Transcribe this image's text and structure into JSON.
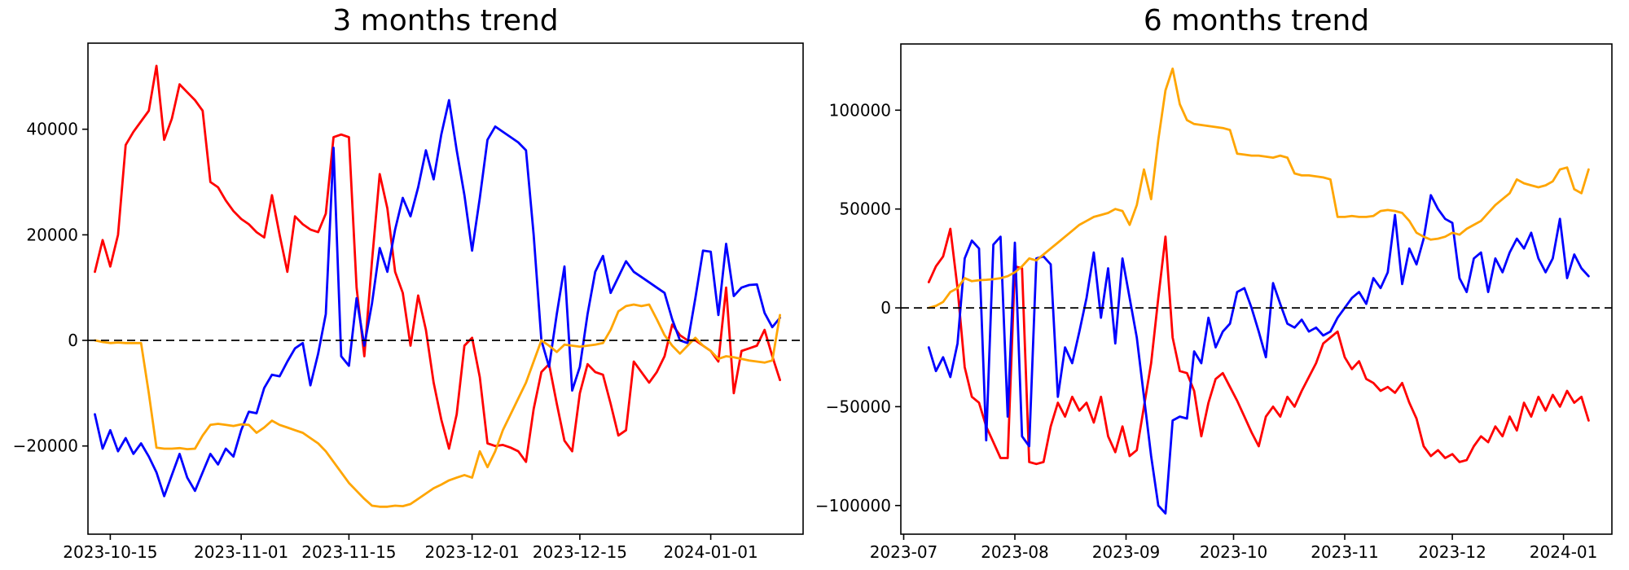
{
  "page": {
    "background": "#ffffff"
  },
  "chart_data": [
    {
      "type": "line",
      "title": "3 months trend",
      "xlabel": "",
      "ylabel": "",
      "grid": false,
      "legend": false,
      "zero_line_style": "black dashed",
      "start_date": "2023-10-13",
      "step_days": 1,
      "xlim_days": [
        -0.9,
        92.0
      ],
      "ylim": [
        -36700,
        56300
      ],
      "yticks": [
        {
          "label": "40000",
          "value": 40000
        },
        {
          "label": "20000",
          "value": 20000
        },
        {
          "label": "0",
          "value": 0
        },
        {
          "label": "−20000",
          "value": -20000
        }
      ],
      "xticks": [
        {
          "label": "2023-10-15",
          "day": 2
        },
        {
          "label": "2023-11-01",
          "day": 19
        },
        {
          "label": "2023-11-15",
          "day": 33
        },
        {
          "label": "2023-12-01",
          "day": 49
        },
        {
          "label": "2023-12-15",
          "day": 63
        },
        {
          "label": "2024-01-01",
          "day": 80
        }
      ],
      "series": [
        {
          "name": "red",
          "color": "#ff0000",
          "values": [
            13000,
            19000,
            14000,
            20000,
            37000,
            39500,
            41500,
            43500,
            52000,
            38000,
            42000,
            48500,
            47000,
            45500,
            43500,
            30000,
            29000,
            26500,
            24500,
            23000,
            22000,
            20500,
            19500,
            27500,
            20000,
            13000,
            23500,
            22000,
            21000,
            20500,
            24000,
            38500,
            39000,
            38500,
            10000,
            -3000,
            15000,
            31500,
            25000,
            13000,
            9000,
            -1000,
            8500,
            2000,
            -8000,
            -15000,
            -20500,
            -14000,
            -1000,
            500,
            -7000,
            -19500,
            -20000,
            -19800,
            -20300,
            -21000,
            -23000,
            -13000,
            -6000,
            -4500,
            -12000,
            -19000,
            -21000,
            -10000,
            -4500,
            -6000,
            -6500,
            -12000,
            -18000,
            -17000,
            -4000,
            -6000,
            -8000,
            -6000,
            -3000,
            3000,
            1000,
            0,
            0,
            -1000,
            -2000,
            -4000,
            10000,
            -10000,
            -2000,
            -1500,
            -1000,
            2000,
            -3000,
            -7500
          ]
        },
        {
          "name": "blue",
          "color": "#0000ff",
          "values": [
            -14000,
            -20500,
            -17000,
            -21000,
            -18500,
            -21500,
            -19500,
            -22000,
            -25000,
            -29500,
            -25500,
            -21500,
            -26000,
            -28500,
            -25000,
            -21500,
            -23500,
            -20500,
            -22000,
            -17000,
            -13500,
            -13800,
            -9000,
            -6500,
            -6800,
            -4000,
            -1500,
            -500,
            -8500,
            -2500,
            5000,
            36500,
            -3000,
            -4800,
            8000,
            -1000,
            7000,
            17500,
            13000,
            21000,
            27000,
            23500,
            29000,
            36000,
            30500,
            39000,
            45500,
            36000,
            27500,
            17000,
            27000,
            38000,
            40500,
            39500,
            38500,
            37500,
            36000,
            20000,
            0,
            -5000,
            5000,
            14000,
            -9500,
            -5000,
            5000,
            13000,
            16000,
            9000,
            12000,
            15000,
            13000,
            12000,
            11000,
            10000,
            9000,
            4000,
            0,
            -500,
            8000,
            17000,
            16800,
            4800,
            18300,
            8400,
            10000,
            10500,
            10600,
            5200,
            2500,
            4300
          ]
        },
        {
          "name": "orange",
          "color": "#ffa500",
          "values": [
            0,
            -300,
            -500,
            -400,
            -500,
            -500,
            -500,
            -10000,
            -20300,
            -20500,
            -20500,
            -20400,
            -20600,
            -20500,
            -18000,
            -16000,
            -15800,
            -16000,
            -16200,
            -15900,
            -16000,
            -17500,
            -16500,
            -15200,
            -16000,
            -16500,
            -17000,
            -17500,
            -18500,
            -19500,
            -21000,
            -23000,
            -25000,
            -27000,
            -28500,
            -30000,
            -31300,
            -31500,
            -31500,
            -31300,
            -31400,
            -31000,
            -30000,
            -29000,
            -28000,
            -27300,
            -26500,
            -26000,
            -25500,
            -26000,
            -21000,
            -24000,
            -21000,
            -17000,
            -14000,
            -11000,
            -8000,
            -4000,
            0,
            -1000,
            -2200,
            -800,
            -1000,
            -1200,
            -1000,
            -800,
            -500,
            2000,
            5500,
            6500,
            6800,
            6500,
            6800,
            4000,
            1000,
            -1000,
            -2500,
            -1000,
            500,
            -1000,
            -2000,
            -3500,
            -3000,
            -3200,
            -3500,
            -3800,
            -4000,
            -4200,
            -3800,
            4800
          ]
        }
      ]
    },
    {
      "type": "line",
      "title": "6 months trend",
      "xlabel": "",
      "ylabel": "",
      "grid": false,
      "legend": false,
      "zero_line_style": "black dashed",
      "start_date": "2023-07-08",
      "step_days": 2,
      "xlim_days": [
        -7.8,
        190.5
      ],
      "ylim": [
        -114500,
        133500
      ],
      "yticks": [
        {
          "label": "100000",
          "value": 100000
        },
        {
          "label": "50000",
          "value": 50000
        },
        {
          "label": "0",
          "value": 0
        },
        {
          "label": "−50000",
          "value": -50000
        },
        {
          "label": "−100000",
          "value": -100000
        }
      ],
      "xticks": [
        {
          "label": "2023-07",
          "day": -7
        },
        {
          "label": "2023-08",
          "day": 24
        },
        {
          "label": "2023-09",
          "day": 55
        },
        {
          "label": "2023-10",
          "day": 85
        },
        {
          "label": "2023-11",
          "day": 116
        },
        {
          "label": "2023-12",
          "day": 146
        },
        {
          "label": "2024-01",
          "day": 177
        }
      ],
      "series": [
        {
          "name": "red",
          "color": "#ff0000",
          "values": [
            13000,
            21000,
            26000,
            40000,
            10000,
            -30000,
            -45000,
            -48000,
            -60000,
            -68000,
            -76000,
            -76000,
            21000,
            20000,
            -78000,
            -79000,
            -78000,
            -60000,
            -48000,
            -55000,
            -45000,
            -52000,
            -48000,
            -58000,
            -45000,
            -65000,
            -73000,
            -60000,
            -75000,
            -72000,
            -50000,
            -28000,
            5000,
            36000,
            -15000,
            -32000,
            -33000,
            -42000,
            -65000,
            -48000,
            -36000,
            -33000,
            -40000,
            -47000,
            -55000,
            -63000,
            -70000,
            -55000,
            -50000,
            -55000,
            -45000,
            -50000,
            -42000,
            -35000,
            -28000,
            -18000,
            -15000,
            -12000,
            -25000,
            -31000,
            -27000,
            -36000,
            -38000,
            -42000,
            -40000,
            -43000,
            -38000,
            -48000,
            -56000,
            -70000,
            -75000,
            -72000,
            -76000,
            -74000,
            -78000,
            -77000,
            -70000,
            -65000,
            -68000,
            -60000,
            -65000,
            -55000,
            -62000,
            -48000,
            -55000,
            -45000,
            -52000,
            -44000,
            -50000,
            -42000,
            -48000,
            -45000,
            -57000
          ]
        },
        {
          "name": "blue",
          "color": "#0000ff",
          "values": [
            -20000,
            -32000,
            -25000,
            -35000,
            -18000,
            25000,
            34000,
            30000,
            -67000,
            32000,
            36000,
            -55000,
            33000,
            -65000,
            -70000,
            25000,
            26000,
            22000,
            -45000,
            -20000,
            -28000,
            -12000,
            5000,
            28000,
            -5000,
            20000,
            -18000,
            25000,
            5000,
            -15000,
            -45000,
            -75000,
            -100000,
            -104000,
            -57000,
            -55000,
            -56000,
            -22000,
            -28000,
            -5000,
            -20000,
            -12000,
            -8000,
            8000,
            10000,
            0,
            -12000,
            -25000,
            12500,
            2000,
            -8000,
            -10000,
            -6000,
            -12000,
            -10000,
            -14000,
            -12000,
            -5000,
            0,
            5000,
            8000,
            2000,
            15000,
            10000,
            18000,
            47000,
            12000,
            30000,
            22000,
            35000,
            57000,
            50000,
            45000,
            43000,
            15000,
            8000,
            25000,
            28000,
            8000,
            25000,
            18000,
            28000,
            35000,
            30000,
            38000,
            25000,
            18000,
            25000,
            45000,
            15000,
            27000,
            20000,
            16000
          ]
        },
        {
          "name": "orange",
          "color": "#ffa500",
          "values": [
            0,
            1000,
            3000,
            8000,
            10000,
            15000,
            13500,
            14000,
            14200,
            14500,
            15000,
            16000,
            18000,
            21000,
            25000,
            24000,
            27000,
            30000,
            33000,
            36000,
            39000,
            42000,
            44000,
            46000,
            47000,
            48000,
            50000,
            49000,
            42000,
            52000,
            70000,
            55000,
            85000,
            110000,
            121000,
            103000,
            95000,
            93000,
            92500,
            92000,
            91500,
            91000,
            90000,
            78000,
            77500,
            77000,
            77000,
            76500,
            76000,
            77000,
            76000,
            68000,
            67000,
            67000,
            66500,
            66000,
            65000,
            46000,
            46000,
            46500,
            46000,
            46000,
            46500,
            49000,
            49500,
            49000,
            48000,
            44000,
            38000,
            36000,
            34500,
            35000,
            36000,
            38000,
            37000,
            40000,
            42000,
            44000,
            48000,
            52000,
            55000,
            58000,
            65000,
            63000,
            62000,
            61000,
            62000,
            64000,
            70000,
            71000,
            60000,
            58000,
            70000
          ]
        }
      ]
    }
  ]
}
